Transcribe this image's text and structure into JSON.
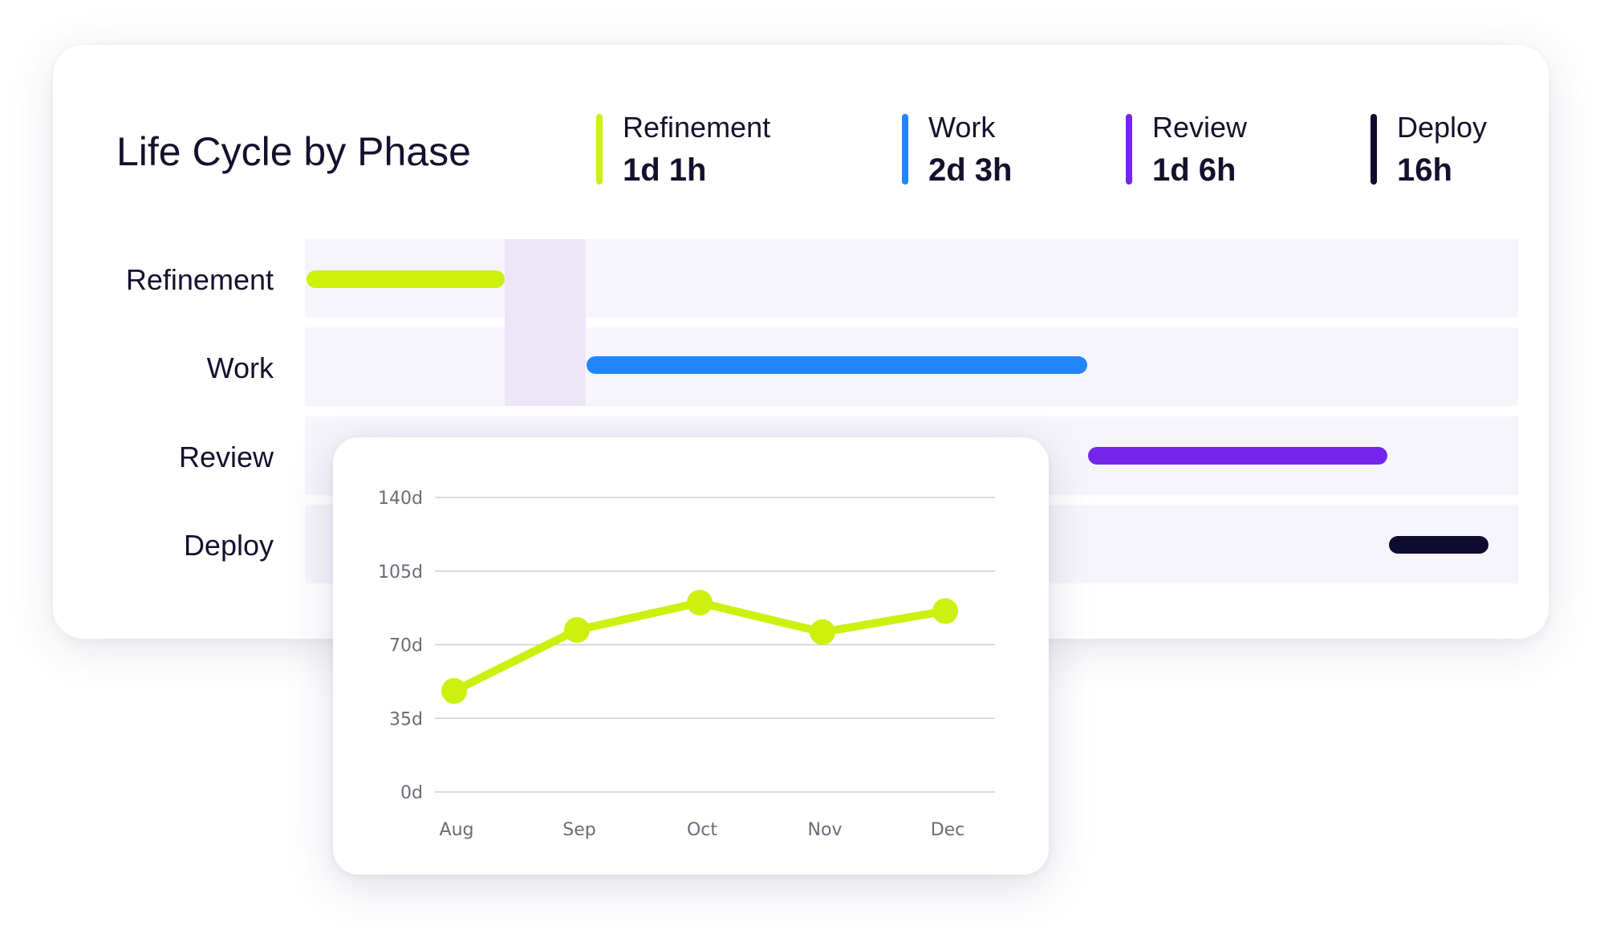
{
  "title": "Life Cycle by Phase",
  "colors": {
    "refinement": "#cdf00f",
    "work": "#2186fb",
    "review": "#7626ec",
    "deploy": "#0e0b2e",
    "line": "#cdf00f",
    "grid": "#cfcfd4",
    "tick": "#6b6b78"
  },
  "summary": [
    {
      "label": "Refinement",
      "value": "1d 1h"
    },
    {
      "label": "Work",
      "value": "2d 3h"
    },
    {
      "label": "Review",
      "value": "1d 6h"
    },
    {
      "label": "Deploy",
      "value": "16h"
    }
  ],
  "rows": [
    {
      "label": "Refinement"
    },
    {
      "label": "Work"
    },
    {
      "label": "Review"
    },
    {
      "label": "Deploy"
    }
  ],
  "chart_data": {
    "type": "line",
    "categories": [
      "Aug",
      "Sep",
      "Oct",
      "Nov",
      "Dec"
    ],
    "y_ticks": [
      "0d",
      "35d",
      "70d",
      "105d",
      "140d"
    ],
    "values": [
      48,
      77,
      90,
      76,
      86
    ],
    "ylim": [
      0,
      140
    ],
    "grid": true,
    "title": "",
    "xlabel": "",
    "ylabel": ""
  }
}
